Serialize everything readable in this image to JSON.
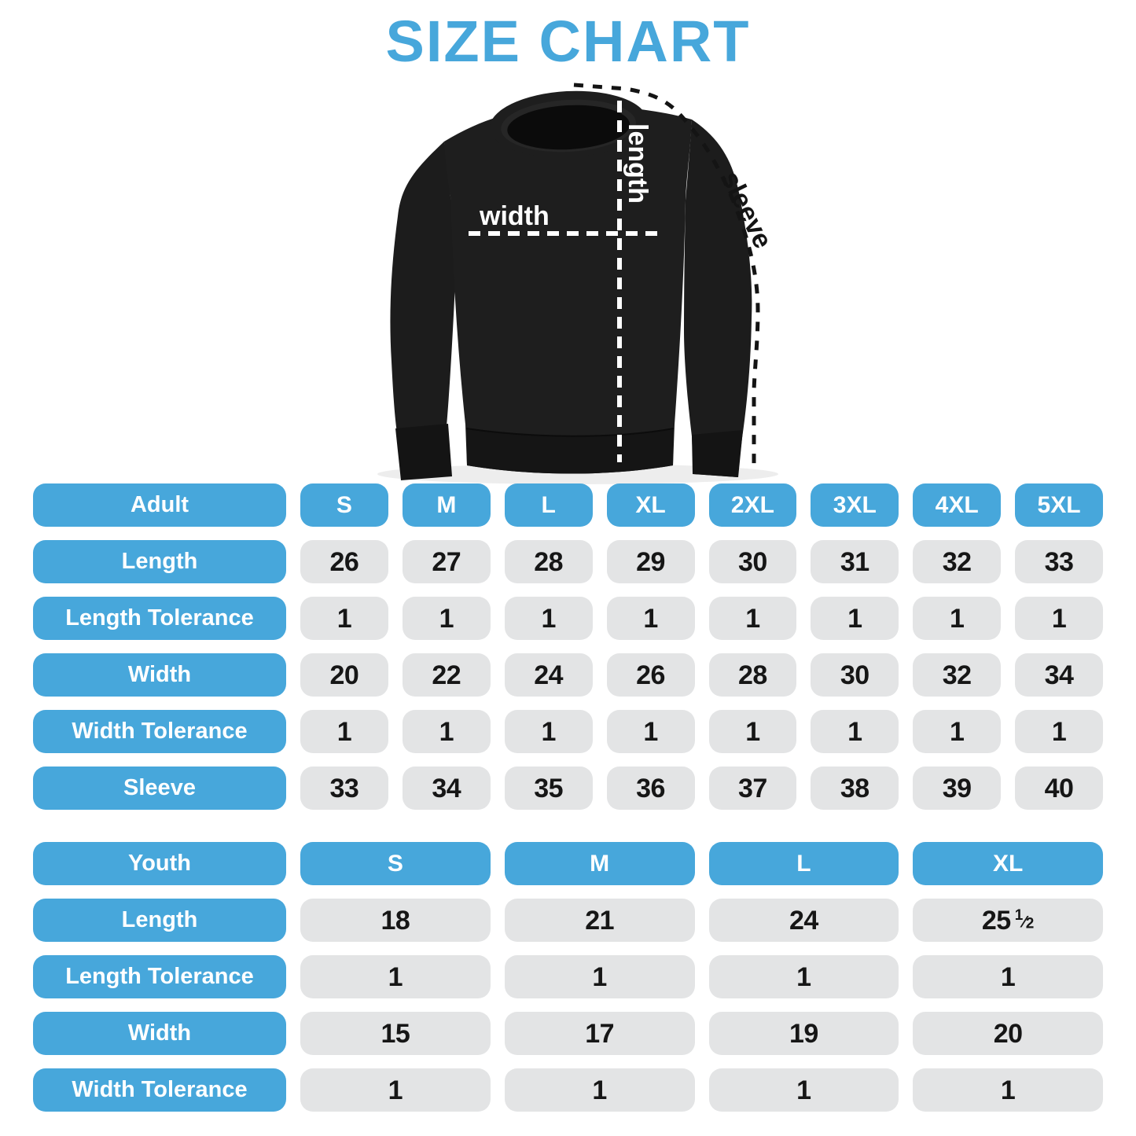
{
  "title": "SIZE CHART",
  "colors": {
    "accent": "#47A7DB",
    "cell_background": "#E3E4E5",
    "value_text": "#161616",
    "garment_black": "#1C1C1C",
    "measure_line_white": "#FFFFFF",
    "measure_line_black": "#141414"
  },
  "diagram": {
    "garment": "black-crewneck-sweatshirt",
    "width_label": "width",
    "length_label": "length",
    "sleeve_label": "sleeve"
  },
  "chart_data": [
    {
      "type": "table",
      "name": "Adult",
      "columns": [
        "S",
        "M",
        "L",
        "XL",
        "2XL",
        "3XL",
        "4XL",
        "5XL"
      ],
      "rows": [
        {
          "label": "Length",
          "values": [
            "26",
            "27",
            "28",
            "29",
            "30",
            "31",
            "32",
            "33"
          ]
        },
        {
          "label": "Length Tolerance",
          "values": [
            "1",
            "1",
            "1",
            "1",
            "1",
            "1",
            "1",
            "1"
          ]
        },
        {
          "label": "Width",
          "values": [
            "20",
            "22",
            "24",
            "26",
            "28",
            "30",
            "32",
            "34"
          ]
        },
        {
          "label": "Width Tolerance",
          "values": [
            "1",
            "1",
            "1",
            "1",
            "1",
            "1",
            "1",
            "1"
          ]
        },
        {
          "label": "Sleeve",
          "values": [
            "33",
            "34",
            "35",
            "36",
            "37",
            "38",
            "39",
            "40"
          ]
        }
      ]
    },
    {
      "type": "table",
      "name": "Youth",
      "columns": [
        "S",
        "M",
        "L",
        "XL"
      ],
      "rows": [
        {
          "label": "Length",
          "values": [
            "18",
            "21",
            "24",
            "25 1/2"
          ]
        },
        {
          "label": "Length Tolerance",
          "values": [
            "1",
            "1",
            "1",
            "1"
          ]
        },
        {
          "label": "Width",
          "values": [
            "15",
            "17",
            "19",
            "20"
          ]
        },
        {
          "label": "Width Tolerance",
          "values": [
            "1",
            "1",
            "1",
            "1"
          ]
        }
      ]
    }
  ]
}
